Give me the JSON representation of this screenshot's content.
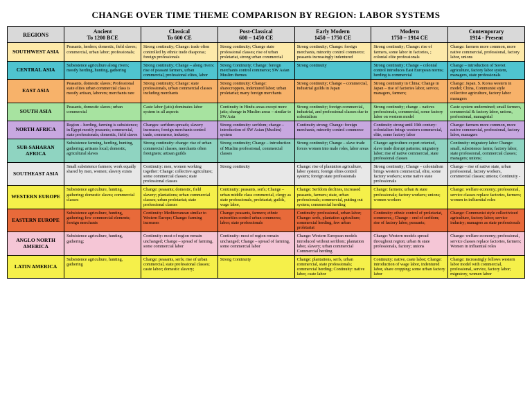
{
  "title": "CHANGE OVER TIME THEME COMPARISON BY REGION: LABOR SYSTEMS",
  "headers": {
    "regions": "REGIONS",
    "periods": [
      {
        "line1": "Ancient",
        "line2": "To 1200 BCE"
      },
      {
        "line1": "Classical",
        "line2": "To 600 CE"
      },
      {
        "line1": "Post-Classical",
        "line2": "600 – 1450 CE"
      },
      {
        "line1": "Early Modern",
        "line2": "1450 – 1750 CE"
      },
      {
        "line1": "Modern",
        "line2": "1750 – 1914 CE"
      },
      {
        "line1": "Contemporary",
        "line2": "1914 - Present"
      }
    ]
  },
  "rows": [
    {
      "region": "SOUTHWEST ASIA",
      "color": "#fde9a9",
      "cells": [
        "Peasants, herders; domestic, field slaves; commercial, urban labor; professionals;",
        "Strong continuity; Change: trade often controlled by ethnic trade diasporas; foreign professionals",
        "Strong continuity; Change state professional classes; rise of urban proletariat, strong urban commercial",
        "Strong continuity; Change: foreign merchants, minority control commerce; peasants increasingly indentured",
        "Strong continuity; Change: rise of farmers, some labor in factories, ; colonial elite professionals",
        "Change: farmers more common, more native commercial, professional, factory labor, unions"
      ]
    },
    {
      "region": "CENTRAL ASIA",
      "color": "#4fc4cf",
      "cells": [
        "Subsistence agriculture along rivers; mostly herding, hunting, gathering",
        "Strong continuity; Change – along rivers: rise of peasant farmers, urban commercial, professional elites, labor",
        "Strong Continuity; Change: foreign merchants control commerce; SW Asian Muslim themes",
        "Strong continuity",
        "Strong continuity; Change – colonial control introduces East European norms; herding is commercial",
        "Change – introduction of Soviet agriculture, factory labor system, managers, state professionals"
      ]
    },
    {
      "region": "EAST ASIA",
      "color": "#f7b26a",
      "cells": [
        "Peasants, domestic slaves; Professional state elites urban commercial class is mostly artisan, laborers; merchants rare",
        "Strong continuity; Change: state professionals, urban commercial classes including merchants",
        "Strong continuity: Change: sharecroppers, indentured labor; urban proletariat; many foreign merchants",
        "Strong continuity; Change – commercial, industrial guilds in Japan",
        "Strong continuity in China; Change in Japan – rise of factories labor, service, managers, farmers;",
        "Change: Japan. S. Korea western in model; China, Communist style collective agriculture, factory labor managers"
      ]
    },
    {
      "region": "SOUTH ASIA",
      "color": "#a7e3a0",
      "cells": [
        "Peasants, domestic slaves; urban commercial",
        "Caste labor (jatis) dominates labor system in all aspects",
        "Continuity in Hindu areas except more jatis; change in Muslim areas – similar to SW Asia",
        "Strong continuity; foreign commercial, industrial, and professional classes due to colonialism",
        "Strong continuity; change – natives professionals, commercial, some factory labor on western model",
        "Caste system undermined; small farmers, commercial & factory labor, unions, professional, managerial"
      ]
    },
    {
      "region": "NORTH AFRICA",
      "color": "#c8a8e0",
      "cells": [
        "Region – herding, farming is subsistence; in Egypt mostly peasants; commercial, state professionals; domestic, field slaves",
        "Changes: serfdom spreads; slavery increases; foreign merchants control trade, commerce, industry;",
        "Strong continuity: serfdom; change – introduction of SW Asian (Muslim) system",
        "Continuity strong; Change: foreign merchants, minority control commerce",
        "Continuity strong until 19th century: colonialism brings western commercial, elite, some factory labor",
        "Change: farmers more common, more native commercial, professional, factory labor, managers"
      ]
    },
    {
      "region": "SUB-SAHARAN AFRICA",
      "color": "#8fd4c1",
      "cells": [
        "Subsistence farming, herding, hunting, gathering; artisans local; domestic, agricultural slaves",
        "Strong continuity: change: rise of urban commercial classes, merchants often foreigners; artisan guilds",
        "Strong continuity; Change – introduction of Muslim professional, commercial classes",
        "Strong continuity; Change – slave trade forces women into male roles, labor areas",
        "Change: agriculture export oriented, slave trade disrupt patterns; migratory labor; rise of native commercial, state professional classes",
        "Continuity: migratory labor Change: small, subsistence farms; factory labor, state professional, commercial classes; managers; unions;"
      ]
    },
    {
      "region": "SOUTHEAST ASIA",
      "color": "#e8e8e8",
      "cells": [
        "Small subsistence farmers; work equally shared by men, women; slavery exists",
        "Continuity: men, women working together: Change: collective agriculture; some commercial classes; state professional classes",
        "Strong continuity",
        "Change: rise of plantation agriculture, labor system; foreign elites control system; foreign state professionals",
        "Strong continuity; Change – colonialism brings western commercial, elite, some factory workers; some native state professionals",
        "Change – rise of native state, urban professional, factory workers, commercial classes; unions; Continuity -"
      ]
    },
    {
      "region": "WESTERN EUROPE",
      "color": "#f5f04a",
      "cells": [
        "Subsistence agriculture, hunting, gathering; domestic slaves; commercial classes",
        "Change: peasants; domestic, field slavery; plantations; urban commercial classes; urban proletariat; state professional classes",
        "Continuity: peasants, serfs; Change – urban middle class commercial, clergy as state professionals, proletariat; guilds, wage labor,",
        "Change: Serfdom declines, increased peasants, farmers; state, urban professionals; commercial, putting out system; commercial herding",
        "Change: farmers; urban & state professionals; factory workers; unions; women workers",
        "Change: welfare economy; professional, service classes replace factories, farmers; women in influential roles"
      ]
    },
    {
      "region": "EASTERN EUROPE",
      "color": "#e86a3a",
      "cells": [
        "Subsistence agriculture, hunting, gathering; few commercial elements; foreign merchants",
        "Continuity: Mediterranean similar to Western Europe; Change: farming increases",
        "Change: peasants, farmers; ethnic minorities control urban commerce, labor; state professionals",
        "Continuity: professional, urban labor; Change: serfs, plantation agriculture; commercial herding, few urban proletariat",
        "Continuity: ethnic control of proletariat, commerce,; Change – end of serfdom; rise of factory labor, peasants;",
        "Change: Communist style collectivized agriculture, factory labor; service industry; managers as state professionals"
      ]
    },
    {
      "region": "ANGLO NORTH AMERICA",
      "color": "#f5c6d6",
      "cells": [
        "Subsistence agriculture, hunting, gathering;",
        "Continuity: most of region remain unchanged; Change – spread of farming, some commercial labor",
        "Continuity: most of region remain unchanged; Change – spread of farming, some commercial labor",
        "Change: Western European models introduced without serfdom; plantation labor, slavery; urban commercial Commercial herding",
        "Change: Western models spread throughout region; urban & state professionals, factory; unions",
        "Change: welfare economy; professional, service classes replace factories, farmers; Women in influential roles"
      ]
    },
    {
      "region": "LATIN AMERICA",
      "color": "#f5f04a",
      "cells": [
        "Subsistence agriculture, hunting, gathering",
        "Change: peasants, serfs; rise of urban commercial, state professional classes; caste labor; domestic slavery;",
        "Strong Continuity",
        "Change: plantations, serfs, urban commercial, state professionals; commercial herding; Continuity: native labor, caste labor",
        "Continuity: native, caste labor; Change: introduction of wage labor, indentured labor, share cropping; some urban factory labor",
        "Change: increasingly follows western labor model with commercial, professional, service, factory labor; migratory, women labor"
      ]
    }
  ]
}
